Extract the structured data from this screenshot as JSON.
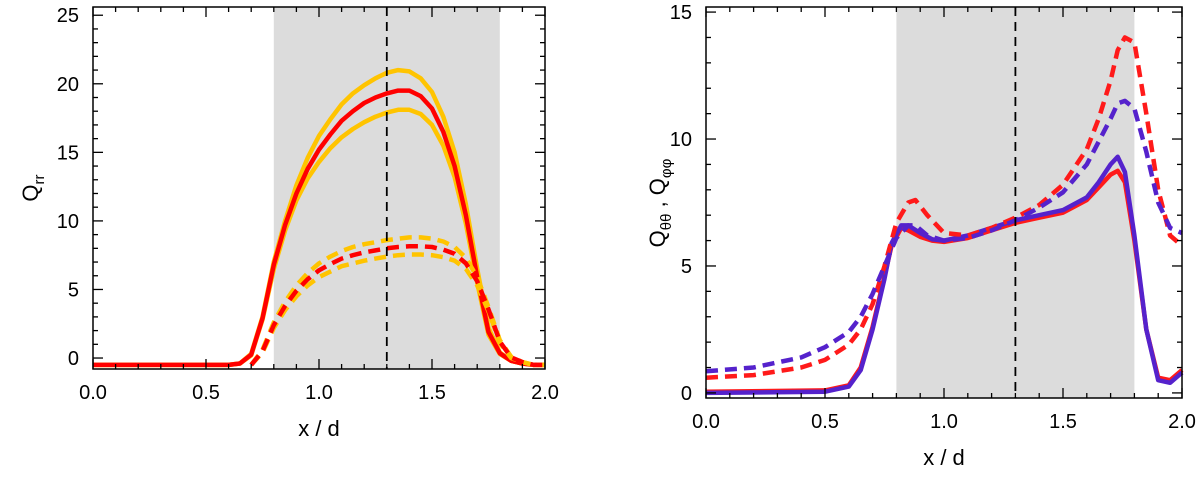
{
  "chart_data": [
    {
      "type": "line",
      "xlabel": "x / d",
      "ylabel_main": "Q",
      "ylabel_sub": "rr",
      "xlim": [
        0,
        2.0
      ],
      "ylim": [
        -0.8,
        25.6
      ],
      "xticks": [
        0.0,
        0.5,
        1.0,
        1.5,
        2.0
      ],
      "xtick_labels": [
        "0.0",
        "0.5",
        "1.0",
        "1.5",
        "2.0"
      ],
      "yticks": [
        0,
        5,
        10,
        15,
        20,
        25
      ],
      "ytick_labels": [
        "0",
        "5",
        "10",
        "15",
        "20",
        "25"
      ],
      "shaded_region": [
        0.8,
        1.8
      ],
      "vertical_line": 1.3,
      "series": [
        {
          "name": "upper bound solid",
          "color": "#ffc400",
          "style": "solid",
          "x": [
            0.0,
            0.6,
            0.65,
            0.7,
            0.75,
            0.8,
            0.85,
            0.9,
            0.95,
            1.0,
            1.05,
            1.1,
            1.15,
            1.2,
            1.25,
            1.3,
            1.35,
            1.4,
            1.45,
            1.5,
            1.55,
            1.6,
            1.65,
            1.7,
            1.75,
            1.8,
            1.85,
            1.9,
            1.95,
            2.0
          ],
          "y": [
            -0.5,
            -0.5,
            -0.4,
            0.3,
            3.0,
            7.0,
            10.0,
            12.6,
            14.6,
            16.2,
            17.4,
            18.5,
            19.3,
            19.9,
            20.4,
            20.8,
            21.0,
            20.9,
            20.4,
            19.4,
            17.6,
            15.0,
            11.2,
            6.5,
            2.2,
            0.4,
            -0.2,
            -0.4,
            -0.5,
            -0.5
          ]
        },
        {
          "name": "lower bound solid",
          "color": "#ffc400",
          "style": "solid",
          "x": [
            0.0,
            0.6,
            0.65,
            0.7,
            0.75,
            0.8,
            0.85,
            0.9,
            0.95,
            1.0,
            1.05,
            1.1,
            1.15,
            1.2,
            1.25,
            1.3,
            1.35,
            1.4,
            1.45,
            1.5,
            1.55,
            1.6,
            1.65,
            1.7,
            1.75,
            1.8,
            1.85,
            1.9,
            1.95,
            2.0
          ],
          "y": [
            -0.5,
            -0.5,
            -0.4,
            0.2,
            2.8,
            6.5,
            9.3,
            11.5,
            13.1,
            14.3,
            15.3,
            16.1,
            16.7,
            17.2,
            17.6,
            17.9,
            18.1,
            18.1,
            17.8,
            17.0,
            15.5,
            13.2,
            9.8,
            5.5,
            1.7,
            0.3,
            -0.2,
            -0.4,
            -0.5,
            -0.5
          ]
        },
        {
          "name": "mean solid",
          "color": "#ff0000",
          "style": "solid",
          "x": [
            0.0,
            0.6,
            0.65,
            0.7,
            0.75,
            0.8,
            0.85,
            0.9,
            0.95,
            1.0,
            1.05,
            1.1,
            1.15,
            1.2,
            1.25,
            1.3,
            1.35,
            1.4,
            1.45,
            1.5,
            1.55,
            1.6,
            1.65,
            1.7,
            1.75,
            1.8,
            1.85,
            1.9,
            1.95,
            2.0
          ],
          "y": [
            -0.5,
            -0.5,
            -0.4,
            0.25,
            2.9,
            6.8,
            9.7,
            12.0,
            13.8,
            15.2,
            16.3,
            17.3,
            18.0,
            18.6,
            19.0,
            19.3,
            19.5,
            19.5,
            19.1,
            18.2,
            16.5,
            14.0,
            10.4,
            5.9,
            1.9,
            0.35,
            -0.2,
            -0.4,
            -0.5,
            -0.5
          ]
        },
        {
          "name": "upper bound dashed",
          "color": "#ffc400",
          "style": "dashed",
          "x": [
            0.7,
            0.75,
            0.8,
            0.85,
            0.9,
            0.95,
            1.0,
            1.05,
            1.1,
            1.15,
            1.2,
            1.25,
            1.3,
            1.35,
            1.4,
            1.45,
            1.5,
            1.55,
            1.6,
            1.65,
            1.7,
            1.75,
            1.8,
            1.85,
            1.9,
            1.95,
            2.0
          ],
          "y": [
            -0.5,
            0.6,
            2.6,
            4.1,
            5.3,
            6.2,
            6.9,
            7.4,
            7.8,
            8.1,
            8.3,
            8.45,
            8.6,
            8.7,
            8.8,
            8.8,
            8.7,
            8.5,
            8.1,
            7.3,
            5.9,
            3.7,
            1.3,
            0.1,
            -0.3,
            -0.5,
            -0.5
          ]
        },
        {
          "name": "lower bound dashed",
          "color": "#ffc400",
          "style": "dashed",
          "x": [
            0.7,
            0.75,
            0.8,
            0.85,
            0.9,
            0.95,
            1.0,
            1.05,
            1.1,
            1.15,
            1.2,
            1.25,
            1.3,
            1.35,
            1.4,
            1.45,
            1.5,
            1.55,
            1.6,
            1.65,
            1.7,
            1.75,
            1.8,
            1.85,
            1.9,
            1.95,
            2.0
          ],
          "y": [
            -0.5,
            0.4,
            2.2,
            3.5,
            4.5,
            5.3,
            5.9,
            6.3,
            6.7,
            6.9,
            7.1,
            7.25,
            7.4,
            7.5,
            7.55,
            7.55,
            7.5,
            7.35,
            7.1,
            6.5,
            5.3,
            3.4,
            1.1,
            0.0,
            -0.3,
            -0.5,
            -0.5
          ]
        },
        {
          "name": "mean dashed",
          "color": "#ff0000",
          "style": "dashed",
          "x": [
            0.7,
            0.75,
            0.8,
            0.85,
            0.9,
            0.95,
            1.0,
            1.05,
            1.1,
            1.15,
            1.2,
            1.25,
            1.3,
            1.35,
            1.4,
            1.45,
            1.5,
            1.55,
            1.6,
            1.65,
            1.7,
            1.75,
            1.8,
            1.85,
            1.9,
            1.95,
            2.0
          ],
          "y": [
            -0.5,
            0.5,
            2.4,
            3.8,
            4.9,
            5.75,
            6.4,
            6.85,
            7.25,
            7.5,
            7.7,
            7.85,
            8.0,
            8.1,
            8.15,
            8.15,
            8.1,
            7.9,
            7.6,
            6.9,
            5.6,
            3.55,
            1.2,
            0.05,
            -0.3,
            -0.5,
            -0.5
          ]
        }
      ]
    },
    {
      "type": "line",
      "xlabel": "x / d",
      "ylabel_parts": [
        {
          "text": "Q",
          "sub": false
        },
        {
          "text": "θθ",
          "sub": true
        },
        {
          "text": " , Q",
          "sub": false
        },
        {
          "text": "φφ",
          "sub": true
        }
      ],
      "xlim": [
        0,
        2.0
      ],
      "ylim": [
        -0.2,
        15.2
      ],
      "xticks": [
        0.0,
        0.5,
        1.0,
        1.5,
        2.0
      ],
      "xtick_labels": [
        "0.0",
        "0.5",
        "1.0",
        "1.5",
        "2.0"
      ],
      "yticks": [
        0,
        5,
        10,
        15
      ],
      "ytick_labels": [
        "0",
        "5",
        "10",
        "15"
      ],
      "shaded_region": [
        0.8,
        1.8
      ],
      "vertical_line": 1.3,
      "series": [
        {
          "name": "red solid",
          "color": "#ff1a1a",
          "style": "solid",
          "x": [
            0.0,
            0.5,
            0.6,
            0.65,
            0.7,
            0.75,
            0.78,
            0.82,
            0.85,
            0.9,
            0.95,
            1.0,
            1.1,
            1.2,
            1.3,
            1.4,
            1.5,
            1.6,
            1.65,
            1.7,
            1.73,
            1.76,
            1.8,
            1.85,
            1.9,
            1.95,
            2.0
          ],
          "y": [
            0.05,
            0.1,
            0.3,
            1.0,
            2.6,
            4.6,
            5.8,
            6.5,
            6.4,
            6.15,
            6.0,
            5.95,
            6.1,
            6.4,
            6.7,
            6.9,
            7.1,
            7.6,
            8.1,
            8.6,
            8.75,
            8.3,
            6.0,
            2.5,
            0.6,
            0.5,
            0.9
          ]
        },
        {
          "name": "purple solid",
          "color": "#5522cc",
          "style": "solid",
          "x": [
            0.0,
            0.5,
            0.6,
            0.65,
            0.7,
            0.75,
            0.78,
            0.82,
            0.85,
            0.9,
            0.95,
            1.0,
            1.1,
            1.2,
            1.3,
            1.4,
            1.5,
            1.6,
            1.65,
            1.7,
            1.73,
            1.76,
            1.8,
            1.85,
            1.9,
            1.95,
            2.0
          ],
          "y": [
            0.0,
            0.05,
            0.25,
            0.9,
            2.5,
            4.5,
            5.9,
            6.6,
            6.6,
            6.3,
            6.05,
            6.0,
            6.2,
            6.5,
            6.8,
            7.0,
            7.2,
            7.7,
            8.3,
            9.0,
            9.3,
            8.7,
            6.2,
            2.5,
            0.5,
            0.4,
            0.8
          ]
        },
        {
          "name": "red dashed",
          "color": "#ff1a1a",
          "style": "dashed",
          "x": [
            0.0,
            0.2,
            0.4,
            0.5,
            0.6,
            0.65,
            0.7,
            0.75,
            0.8,
            0.85,
            0.88,
            0.93,
            1.0,
            1.1,
            1.2,
            1.3,
            1.4,
            1.5,
            1.6,
            1.65,
            1.7,
            1.73,
            1.76,
            1.8,
            1.85,
            1.9,
            1.95,
            2.0
          ],
          "y": [
            0.6,
            0.7,
            1.0,
            1.3,
            1.9,
            2.5,
            3.5,
            5.0,
            6.7,
            7.5,
            7.6,
            7.0,
            6.3,
            6.2,
            6.5,
            6.9,
            7.4,
            8.2,
            9.6,
            10.8,
            12.3,
            13.5,
            14.0,
            13.8,
            11.0,
            8.0,
            6.2,
            5.8
          ]
        },
        {
          "name": "purple dashed",
          "color": "#5522cc",
          "style": "dashed",
          "x": [
            0.0,
            0.2,
            0.4,
            0.5,
            0.6,
            0.65,
            0.7,
            0.75,
            0.8,
            0.85,
            0.88,
            0.93,
            1.0,
            1.1,
            1.2,
            1.3,
            1.4,
            1.5,
            1.6,
            1.65,
            1.7,
            1.73,
            1.76,
            1.8,
            1.85,
            1.9,
            1.95,
            2.0
          ],
          "y": [
            0.85,
            1.0,
            1.4,
            1.8,
            2.4,
            3.0,
            3.9,
            5.0,
            6.1,
            6.6,
            6.6,
            6.2,
            6.0,
            6.1,
            6.4,
            6.8,
            7.3,
            7.9,
            9.0,
            9.9,
            10.8,
            11.4,
            11.5,
            11.2,
            9.5,
            7.5,
            6.5,
            6.3
          ]
        }
      ]
    }
  ]
}
